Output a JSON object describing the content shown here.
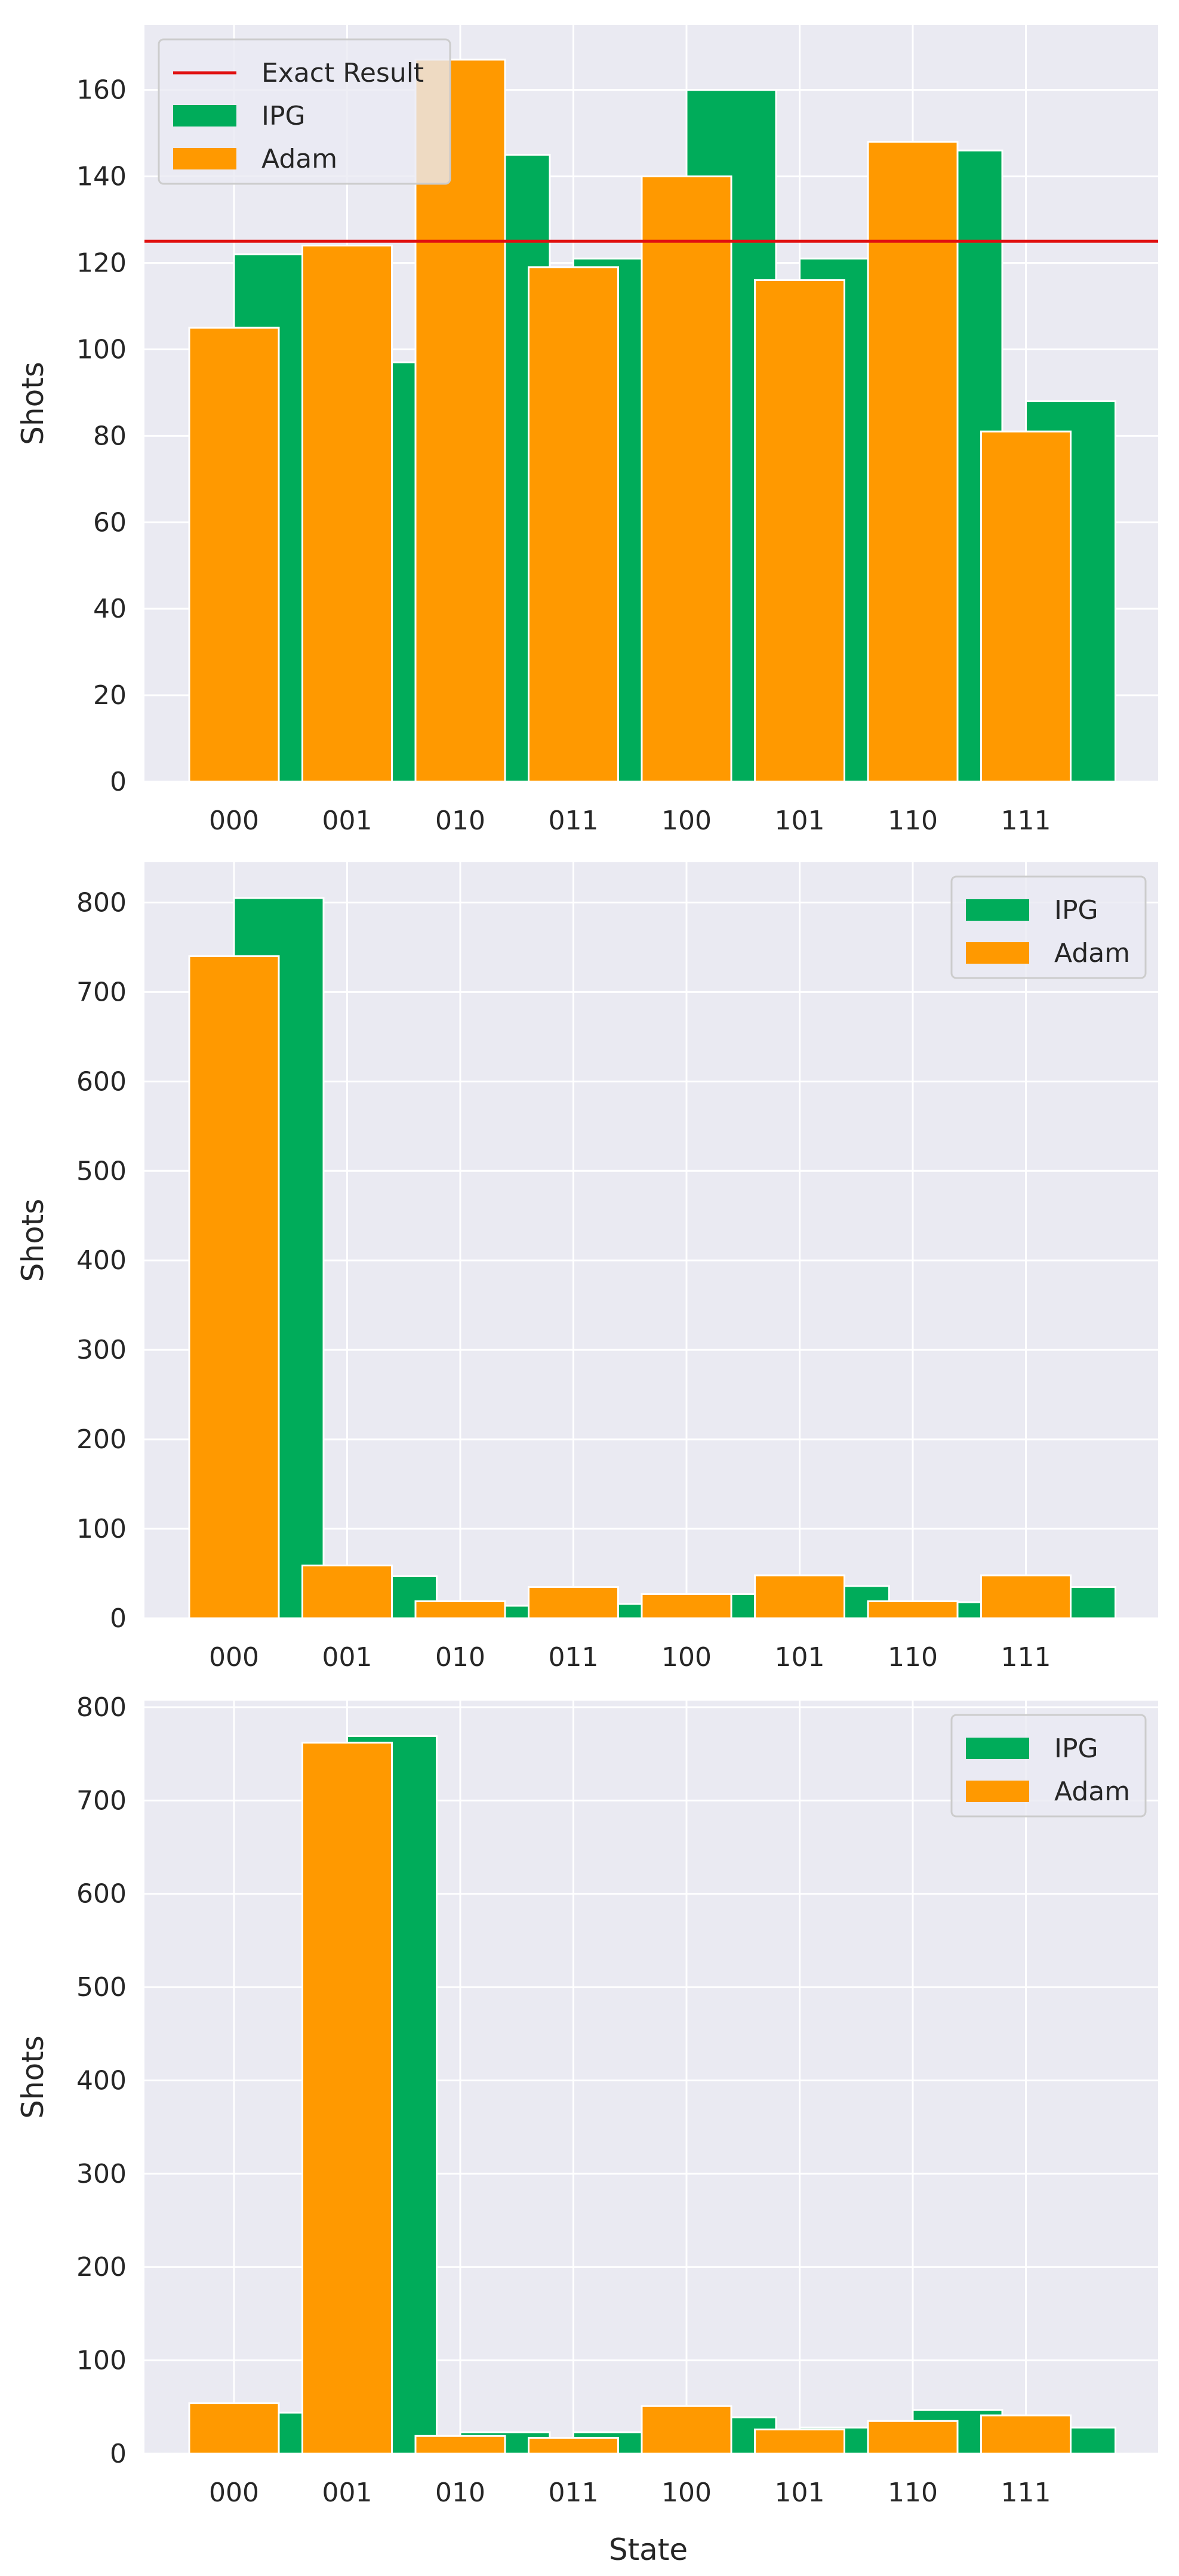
{
  "colors": {
    "ipg": "#00ac5a",
    "adam": "#ff9900",
    "exact": "#e01010",
    "panel_bg": "#eaeaf2",
    "grid": "#ffffff"
  },
  "chart_data": [
    {
      "type": "bar",
      "categories": [
        "000",
        "001",
        "010",
        "011",
        "100",
        "101",
        "110",
        "111"
      ],
      "series": [
        {
          "name": "IPG",
          "values": [
            122,
            97,
            145,
            121,
            160,
            121,
            146,
            88
          ]
        },
        {
          "name": "Adam",
          "values": [
            105,
            124,
            167,
            119,
            140,
            116,
            148,
            81
          ]
        }
      ],
      "exact_result": {
        "label": "Exact Result",
        "value": 125
      },
      "ylabel": "Shots",
      "xlabel": "",
      "ylim": [
        0,
        175
      ],
      "yticks": [
        "0",
        "20",
        "40",
        "60",
        "80",
        "100",
        "120",
        "140",
        "160"
      ],
      "legend": {
        "position": "top-left",
        "entries": [
          "Exact Result",
          "IPG",
          "Adam"
        ]
      }
    },
    {
      "type": "bar",
      "categories": [
        "000",
        "001",
        "010",
        "011",
        "100",
        "101",
        "110",
        "111"
      ],
      "series": [
        {
          "name": "IPG",
          "values": [
            805,
            47,
            14,
            16,
            27,
            36,
            18,
            35
          ]
        },
        {
          "name": "Adam",
          "values": [
            740,
            59,
            19,
            35,
            27,
            48,
            19,
            48
          ]
        }
      ],
      "ylabel": "Shots",
      "xlabel": "",
      "ylim": [
        0,
        845
      ],
      "yticks": [
        "0",
        "100",
        "200",
        "300",
        "400",
        "500",
        "600",
        "700",
        "800"
      ],
      "legend": {
        "position": "top-right",
        "entries": [
          "IPG",
          "Adam"
        ]
      }
    },
    {
      "type": "bar",
      "categories": [
        "000",
        "001",
        "010",
        "011",
        "100",
        "101",
        "110",
        "111"
      ],
      "series": [
        {
          "name": "IPG",
          "values": [
            44,
            769,
            23,
            23,
            39,
            28,
            47,
            28
          ]
        },
        {
          "name": "Adam",
          "values": [
            54,
            762,
            19,
            17,
            51,
            26,
            35,
            41
          ]
        }
      ],
      "ylabel": "Shots",
      "xlabel": "State",
      "ylim": [
        0,
        807
      ],
      "yticks": [
        "0",
        "100",
        "200",
        "300",
        "400",
        "500",
        "600",
        "700",
        "800"
      ],
      "legend": {
        "position": "top-right",
        "entries": [
          "IPG",
          "Adam"
        ]
      }
    }
  ]
}
